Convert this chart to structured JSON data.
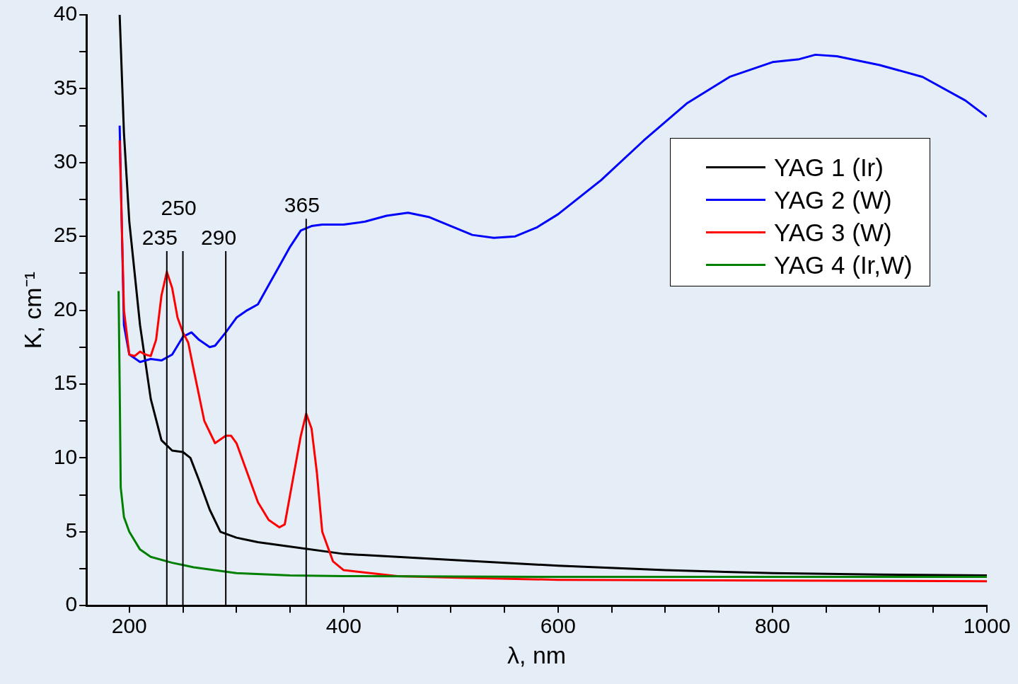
{
  "chart_data": {
    "type": "line",
    "xlabel": "λ, nm",
    "ylabel": "K, cm⁻¹",
    "xlim": [
      160,
      1000
    ],
    "ylim": [
      0,
      40
    ],
    "xticks": [
      200,
      {
        "value": 250,
        "label": null
      },
      {
        "value": 300,
        "label": null
      },
      {
        "value": 350,
        "label": null
      },
      400,
      {
        "value": 450,
        "label": null
      },
      {
        "value": 500,
        "label": null
      },
      {
        "value": 550,
        "label": null
      },
      600,
      {
        "value": 650,
        "label": null
      },
      {
        "value": 700,
        "label": null
      },
      {
        "value": 750,
        "label": null
      },
      800,
      {
        "value": 850,
        "label": null
      },
      {
        "value": 900,
        "label": null
      },
      {
        "value": 950,
        "label": null
      },
      1000
    ],
    "yticks": [
      0,
      {
        "value": 2.5,
        "label": null
      },
      5,
      {
        "value": 7.5,
        "label": null
      },
      10,
      {
        "value": 12.5,
        "label": null
      },
      15,
      {
        "value": 17.5,
        "label": null
      },
      20,
      {
        "value": 22.5,
        "label": null
      },
      25,
      {
        "value": 27.5,
        "label": null
      },
      30,
      {
        "value": 32.5,
        "label": null
      },
      35,
      {
        "value": 37.5,
        "label": null
      },
      40
    ],
    "grid": false,
    "legend": "top right",
    "marker": "none",
    "line_style": "solid",
    "ref_lines": [
      {
        "axis": "x",
        "value": 235,
        "label": "235",
        "color": "#000000"
      },
      {
        "axis": "x",
        "value": 250,
        "label": "250",
        "color": "#000000"
      },
      {
        "axis": "x",
        "value": 290,
        "label": "290",
        "color": "#000000"
      },
      {
        "axis": "x",
        "value": 365,
        "label": "365",
        "color": "#000000"
      }
    ],
    "series": [
      {
        "name": "YAG 1 (Ir)",
        "color": "#000000",
        "x": [
          191,
          195,
          200,
          210,
          220,
          230,
          240,
          250,
          257,
          265,
          275,
          285,
          300,
          320,
          350,
          400,
          500,
          600,
          700,
          800,
          900,
          1000
        ],
        "values": [
          40,
          32,
          26,
          19,
          14,
          11.2,
          10.5,
          10.4,
          10,
          8.5,
          6.5,
          5,
          4.6,
          4.3,
          4,
          3.5,
          3.1,
          2.7,
          2.4,
          2.2,
          2.1,
          2.05
        ]
      },
      {
        "name": "YAG 2 (W)",
        "color": "#0000ff",
        "x": [
          191,
          195,
          200,
          210,
          220,
          230,
          240,
          250,
          258,
          265,
          275,
          280,
          290,
          300,
          310,
          320,
          330,
          340,
          350,
          360,
          370,
          380,
          400,
          420,
          440,
          460,
          480,
          500,
          520,
          540,
          560,
          580,
          600,
          640,
          680,
          720,
          760,
          800,
          825,
          840,
          860,
          900,
          940,
          980,
          1000
        ],
        "values": [
          32.5,
          19,
          17,
          16.5,
          16.7,
          16.6,
          17,
          18.2,
          18.5,
          18,
          17.5,
          17.6,
          18.5,
          19.5,
          20,
          20.4,
          21.7,
          23,
          24.3,
          25.4,
          25.7,
          25.8,
          25.8,
          26,
          26.4,
          26.6,
          26.3,
          25.7,
          25.1,
          24.9,
          25,
          25.6,
          26.5,
          28.8,
          31.5,
          34,
          35.8,
          36.8,
          37,
          37.3,
          37.2,
          36.6,
          35.8,
          34.2,
          33.1
        ]
      },
      {
        "name": "YAG 3 (W)",
        "color": "#ff0000",
        "x": [
          191,
          195,
          200,
          205,
          210,
          215,
          220,
          225,
          230,
          235,
          240,
          245,
          250,
          255,
          260,
          270,
          280,
          290,
          295,
          300,
          310,
          320,
          330,
          340,
          345,
          350,
          360,
          365,
          370,
          375,
          380,
          390,
          400,
          450,
          500,
          600,
          800,
          1000
        ],
        "values": [
          31.5,
          20,
          17,
          16.9,
          17.2,
          17,
          16.9,
          18,
          21,
          22.6,
          21.5,
          19.5,
          18.5,
          17.8,
          16,
          12.5,
          11,
          11.5,
          11.5,
          11,
          9,
          7,
          5.8,
          5.3,
          5.5,
          7.5,
          11.5,
          13,
          12,
          9,
          5,
          3,
          2.4,
          2,
          1.9,
          1.75,
          1.7,
          1.65
        ]
      },
      {
        "name": "YAG 4 (Ir,W)",
        "color": "#008000",
        "x": [
          190,
          191,
          192,
          195,
          200,
          210,
          220,
          240,
          260,
          300,
          350,
          400,
          600,
          1000
        ],
        "values": [
          21.3,
          15,
          8,
          6,
          5,
          3.8,
          3.3,
          2.9,
          2.6,
          2.2,
          2.05,
          2,
          1.95,
          1.95
        ]
      }
    ]
  }
}
